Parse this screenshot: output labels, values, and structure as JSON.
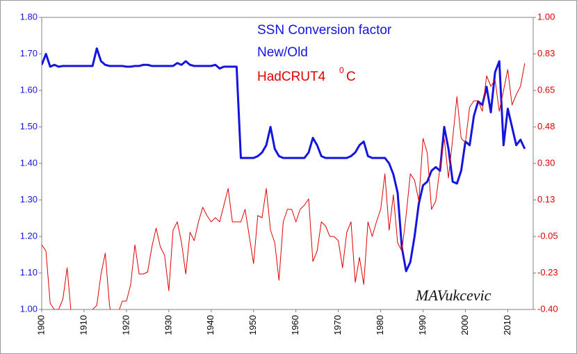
{
  "chart_data": {
    "type": "line",
    "series": [
      {
        "name": "SSN Conversion factor",
        "color": "#1414e0",
        "axis": "y",
        "values": [
          1.67,
          1.7,
          1.665,
          1.67,
          1.665,
          1.667,
          1.667,
          1.667,
          1.667,
          1.667,
          1.667,
          1.667,
          1.667,
          1.715,
          1.68,
          1.67,
          1.667,
          1.667,
          1.667,
          1.667,
          1.665,
          1.665,
          1.667,
          1.667,
          1.67,
          1.67,
          1.667,
          1.667,
          1.667,
          1.667,
          1.667,
          1.667,
          1.675,
          1.67,
          1.68,
          1.67,
          1.667,
          1.667,
          1.667,
          1.667,
          1.667,
          1.67,
          1.66,
          1.665,
          1.665,
          1.665,
          1.665,
          1.415,
          1.415,
          1.415,
          1.415,
          1.42,
          1.43,
          1.45,
          1.5,
          1.44,
          1.42,
          1.415,
          1.415,
          1.415,
          1.415,
          1.415,
          1.415,
          1.43,
          1.47,
          1.45,
          1.42,
          1.415,
          1.415,
          1.415,
          1.415,
          1.415,
          1.415,
          1.42,
          1.43,
          1.45,
          1.46,
          1.42,
          1.415,
          1.415,
          1.415,
          1.415,
          1.4,
          1.37,
          1.32,
          1.17,
          1.105,
          1.13,
          1.2,
          1.29,
          1.34,
          1.35,
          1.38,
          1.39,
          1.38,
          1.5,
          1.44,
          1.35,
          1.345,
          1.38,
          1.46,
          1.45,
          1.53,
          1.57,
          1.56,
          1.61,
          1.54,
          1.65,
          1.68,
          1.45,
          1.55,
          1.5,
          1.45,
          1.465,
          1.44
        ]
      },
      {
        "name": "HadCRUT4",
        "color": "#e00000",
        "axis": "y2",
        "values": [
          -0.09,
          -0.12,
          -0.37,
          -0.4,
          -0.4,
          -0.35,
          -0.2,
          -0.43,
          -0.45,
          -0.45,
          -0.43,
          -0.45,
          -0.4,
          -0.38,
          -0.23,
          -0.13,
          -0.38,
          -0.48,
          -0.42,
          -0.36,
          -0.36,
          -0.28,
          -0.09,
          -0.23,
          -0.23,
          -0.22,
          -0.1,
          -0.01,
          -0.1,
          -0.14,
          -0.31,
          -0.02,
          0.02,
          -0.08,
          -0.23,
          -0.03,
          -0.07,
          0.02,
          0.09,
          0.05,
          0.02,
          0.04,
          0.02,
          0.1,
          0.18,
          0.02,
          0.02,
          0.02,
          0.08,
          -0.05,
          -0.18,
          0.05,
          0.04,
          0.18,
          -0.02,
          -0.08,
          -0.26,
          0.02,
          0.08,
          0.08,
          0.02,
          0.08,
          0.1,
          0.13,
          -0.17,
          -0.12,
          0.02,
          0.0,
          -0.05,
          -0.05,
          -0.07,
          -0.2,
          -0.03,
          0.02,
          -0.27,
          -0.15,
          -0.28,
          0.02,
          -0.05,
          0.02,
          0.08,
          0.25,
          -0.02,
          0.15,
          -0.08,
          -0.12,
          0.05,
          0.25,
          0.22,
          0.12,
          0.42,
          0.35,
          0.08,
          0.12,
          0.28,
          0.42,
          0.23,
          0.42,
          0.62,
          0.42,
          0.4,
          0.57,
          0.6,
          0.6,
          0.55,
          0.72,
          0.67,
          0.7,
          0.55,
          0.65,
          0.75,
          0.58,
          0.63,
          0.67,
          0.78
        ]
      }
    ],
    "x_start": 1900,
    "xlim": [
      1900,
      2016
    ],
    "xticks": [
      1900,
      1910,
      1920,
      1930,
      1940,
      1950,
      1960,
      1970,
      1980,
      1990,
      2000,
      2010
    ],
    "ylim": [
      1.0,
      1.8
    ],
    "yticks": [
      {
        "value": 1.0,
        "label": "1.00"
      },
      {
        "value": 1.1,
        "label": "1.10"
      },
      {
        "value": 1.2,
        "label": "1.20"
      },
      {
        "value": 1.3,
        "label": "1.30"
      },
      {
        "value": 1.4,
        "label": "1.40"
      },
      {
        "value": 1.5,
        "label": "1.50"
      },
      {
        "value": 1.6,
        "label": "1.60"
      },
      {
        "value": 1.7,
        "label": "1.70"
      },
      {
        "value": 1.8,
        "label": "1.80"
      }
    ],
    "y2lim": [
      -0.4,
      1.0
    ],
    "y2ticks": [
      {
        "value": -0.4,
        "label": "-0.40"
      },
      {
        "value": -0.225,
        "label": "-0.23"
      },
      {
        "value": -0.05,
        "label": "-0.05"
      },
      {
        "value": 0.125,
        "label": "0.13"
      },
      {
        "value": 0.3,
        "label": "0.30"
      },
      {
        "value": 0.475,
        "label": "0.48"
      },
      {
        "value": 0.65,
        "label": "0.65"
      },
      {
        "value": 0.825,
        "label": "0.83"
      },
      {
        "value": 1.0,
        "label": "1.00"
      }
    ],
    "annotations": [
      "New/Old",
      "0",
      "C",
      "MAVukcevic"
    ],
    "grid": false
  }
}
